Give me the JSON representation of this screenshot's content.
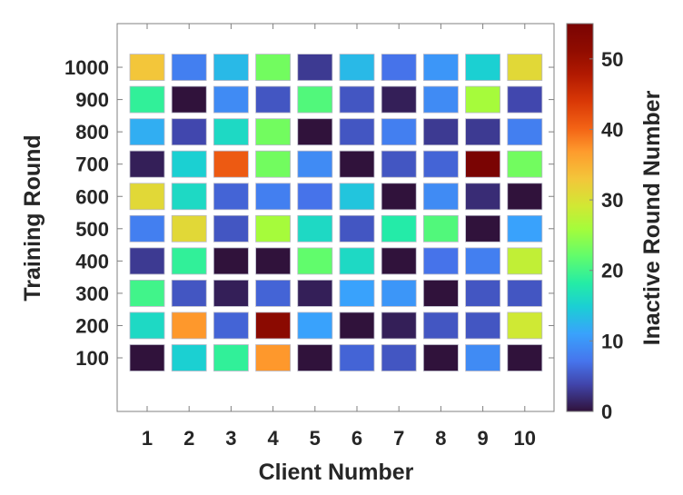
{
  "chart_data": {
    "type": "heatmap",
    "title": "",
    "xlabel": "Client Number",
    "ylabel": "Training Round",
    "colorbar_label": "Inactive Round Number",
    "colormap": "turbo",
    "clim": [
      0,
      55
    ],
    "colorbar_ticks": [
      0,
      10,
      20,
      30,
      40,
      50
    ],
    "x": [
      1,
      2,
      3,
      4,
      5,
      6,
      7,
      8,
      9,
      10
    ],
    "x_tick_labels": [
      "1",
      "2",
      "3",
      "4",
      "5",
      "6",
      "7",
      "8",
      "9",
      "10"
    ],
    "y": [
      100,
      200,
      300,
      400,
      500,
      600,
      700,
      800,
      900,
      1000
    ],
    "y_tick_labels": [
      "100",
      "200",
      "300",
      "400",
      "500",
      "600",
      "700",
      "800",
      "900",
      "1000"
    ],
    "grid": false,
    "legend": "colorbar-right",
    "rows": [
      {
        "round": 1000,
        "values": [
          33,
          8,
          13,
          23,
          3,
          13,
          7,
          10,
          15,
          31
        ]
      },
      {
        "round": 900,
        "values": [
          19,
          0,
          9,
          5,
          21,
          5,
          1,
          9,
          26,
          4
        ]
      },
      {
        "round": 800,
        "values": [
          12,
          4,
          16,
          23,
          0,
          5,
          8,
          3,
          3,
          8
        ]
      },
      {
        "round": 700,
        "values": [
          1,
          15,
          41,
          23,
          9,
          0,
          5,
          6,
          55,
          23
        ]
      },
      {
        "round": 600,
        "values": [
          31,
          16,
          6,
          8,
          7,
          14,
          0,
          9,
          2,
          0
        ]
      },
      {
        "round": 500,
        "values": [
          8,
          31,
          5,
          26,
          16,
          5,
          18,
          21,
          0,
          11
        ]
      },
      {
        "round": 400,
        "values": [
          3,
          19,
          0,
          0,
          22,
          16,
          0,
          7,
          8,
          28
        ]
      },
      {
        "round": 300,
        "values": [
          20,
          5,
          1,
          6,
          1,
          11,
          10,
          0,
          5,
          5
        ]
      },
      {
        "round": 200,
        "values": [
          16,
          37,
          6,
          52,
          11,
          0,
          1,
          5,
          5,
          29
        ]
      },
      {
        "round": 100,
        "values": [
          0,
          15,
          19,
          37,
          0,
          6,
          5,
          0,
          9,
          0
        ]
      }
    ]
  }
}
